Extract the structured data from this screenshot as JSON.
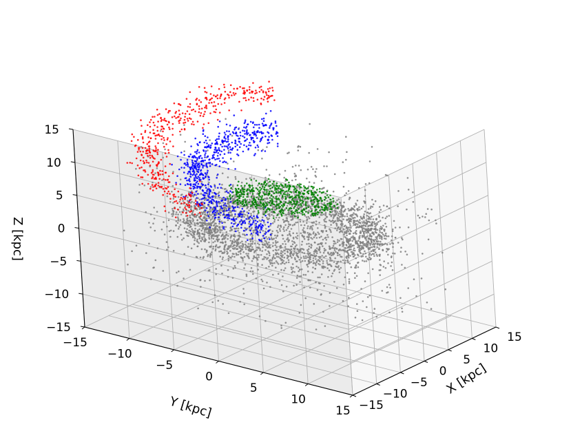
{
  "chart_data": {
    "type": "scatter3d",
    "title": "",
    "xlabel": "X [kpc]",
    "ylabel": "Y [kpc]",
    "zlabel": "Z [kpc]",
    "xlim": [
      -15,
      15
    ],
    "ylim": [
      -15,
      15
    ],
    "zlim": [
      -15,
      15
    ],
    "x_ticks": [
      "−15",
      "−10",
      "−5",
      "0",
      "5",
      "10",
      "15"
    ],
    "y_ticks": [
      "−15",
      "−10",
      "−5",
      "0",
      "5",
      "10",
      "15"
    ],
    "z_ticks": [
      "−15",
      "−10",
      "−5",
      "0",
      "5",
      "10",
      "15"
    ],
    "grid": true,
    "legend": "none",
    "series": [
      {
        "color": "#808080",
        "point_count": 3000,
        "components": [
          {
            "shape": "ring",
            "center": [
              0,
              0,
              0
            ],
            "radius": 8.5,
            "spread": 1.2,
            "z_spread": 0.9,
            "share": 0.5
          },
          {
            "shape": "disk",
            "center": [
              0,
              0,
              0
            ],
            "radius": 11.5,
            "z_spread": 2.0,
            "share": 0.3
          },
          {
            "shape": "halo",
            "center": [
              0,
              0,
              0
            ],
            "radius": 16,
            "share": 0.2
          }
        ]
      },
      {
        "color": "#0000ff",
        "point_count": 700,
        "components": [
          {
            "shape": "arc",
            "center": [
              0,
              0,
              0
            ],
            "radius": 8.5,
            "angle_range_deg": [
              160,
              330
            ],
            "z_range": [
              3,
              11
            ],
            "share": 1.0
          }
        ]
      },
      {
        "color": "#ff0000",
        "point_count": 450,
        "components": [
          {
            "shape": "arc",
            "center": [
              0,
              0,
              0
            ],
            "radius": 13,
            "angle_range_deg": [
              190,
              330
            ],
            "z_range": [
              6,
              15
            ],
            "share": 1.0
          }
        ]
      },
      {
        "color": "#008000",
        "point_count": 550,
        "components": [
          {
            "shape": "disk",
            "center": [
              0,
              0,
              4.5
            ],
            "radius": 5.5,
            "z_spread": 0.3,
            "share": 1.0
          }
        ]
      }
    ]
  }
}
